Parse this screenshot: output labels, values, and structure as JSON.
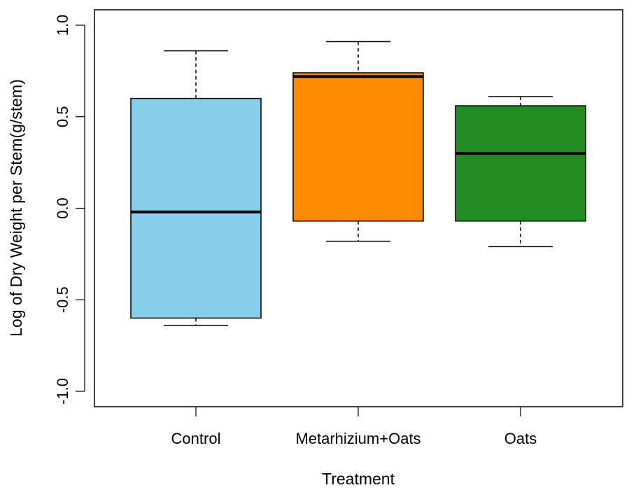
{
  "chart_data": {
    "type": "boxplot",
    "title": "",
    "xlabel": "Treatment",
    "ylabel": "Log of Dry Weight per Stem(g/stem)",
    "ylim": [
      -1.0,
      1.0
    ],
    "yticks": [
      -1.0,
      -0.5,
      0.0,
      0.5,
      1.0
    ],
    "ytick_labels": [
      "-1.0",
      "-0.5",
      "0.0",
      "0.5",
      "1.0"
    ],
    "categories": [
      "Control",
      "Metarhizium+Oats",
      "Oats"
    ],
    "boxes": [
      {
        "name": "Control",
        "whisker_low": -0.64,
        "q1": -0.6,
        "median": -0.02,
        "q3": 0.6,
        "whisker_high": 0.86,
        "color": "#87CEEB"
      },
      {
        "name": "Metarhizium+Oats",
        "whisker_low": -0.18,
        "q1": -0.07,
        "median": 0.72,
        "q3": 0.74,
        "whisker_high": 0.91,
        "color": "#FF8C00"
      },
      {
        "name": "Oats",
        "whisker_low": -0.21,
        "q1": -0.07,
        "median": 0.3,
        "q3": 0.56,
        "whisker_high": 0.61,
        "color": "#228B22"
      }
    ]
  }
}
